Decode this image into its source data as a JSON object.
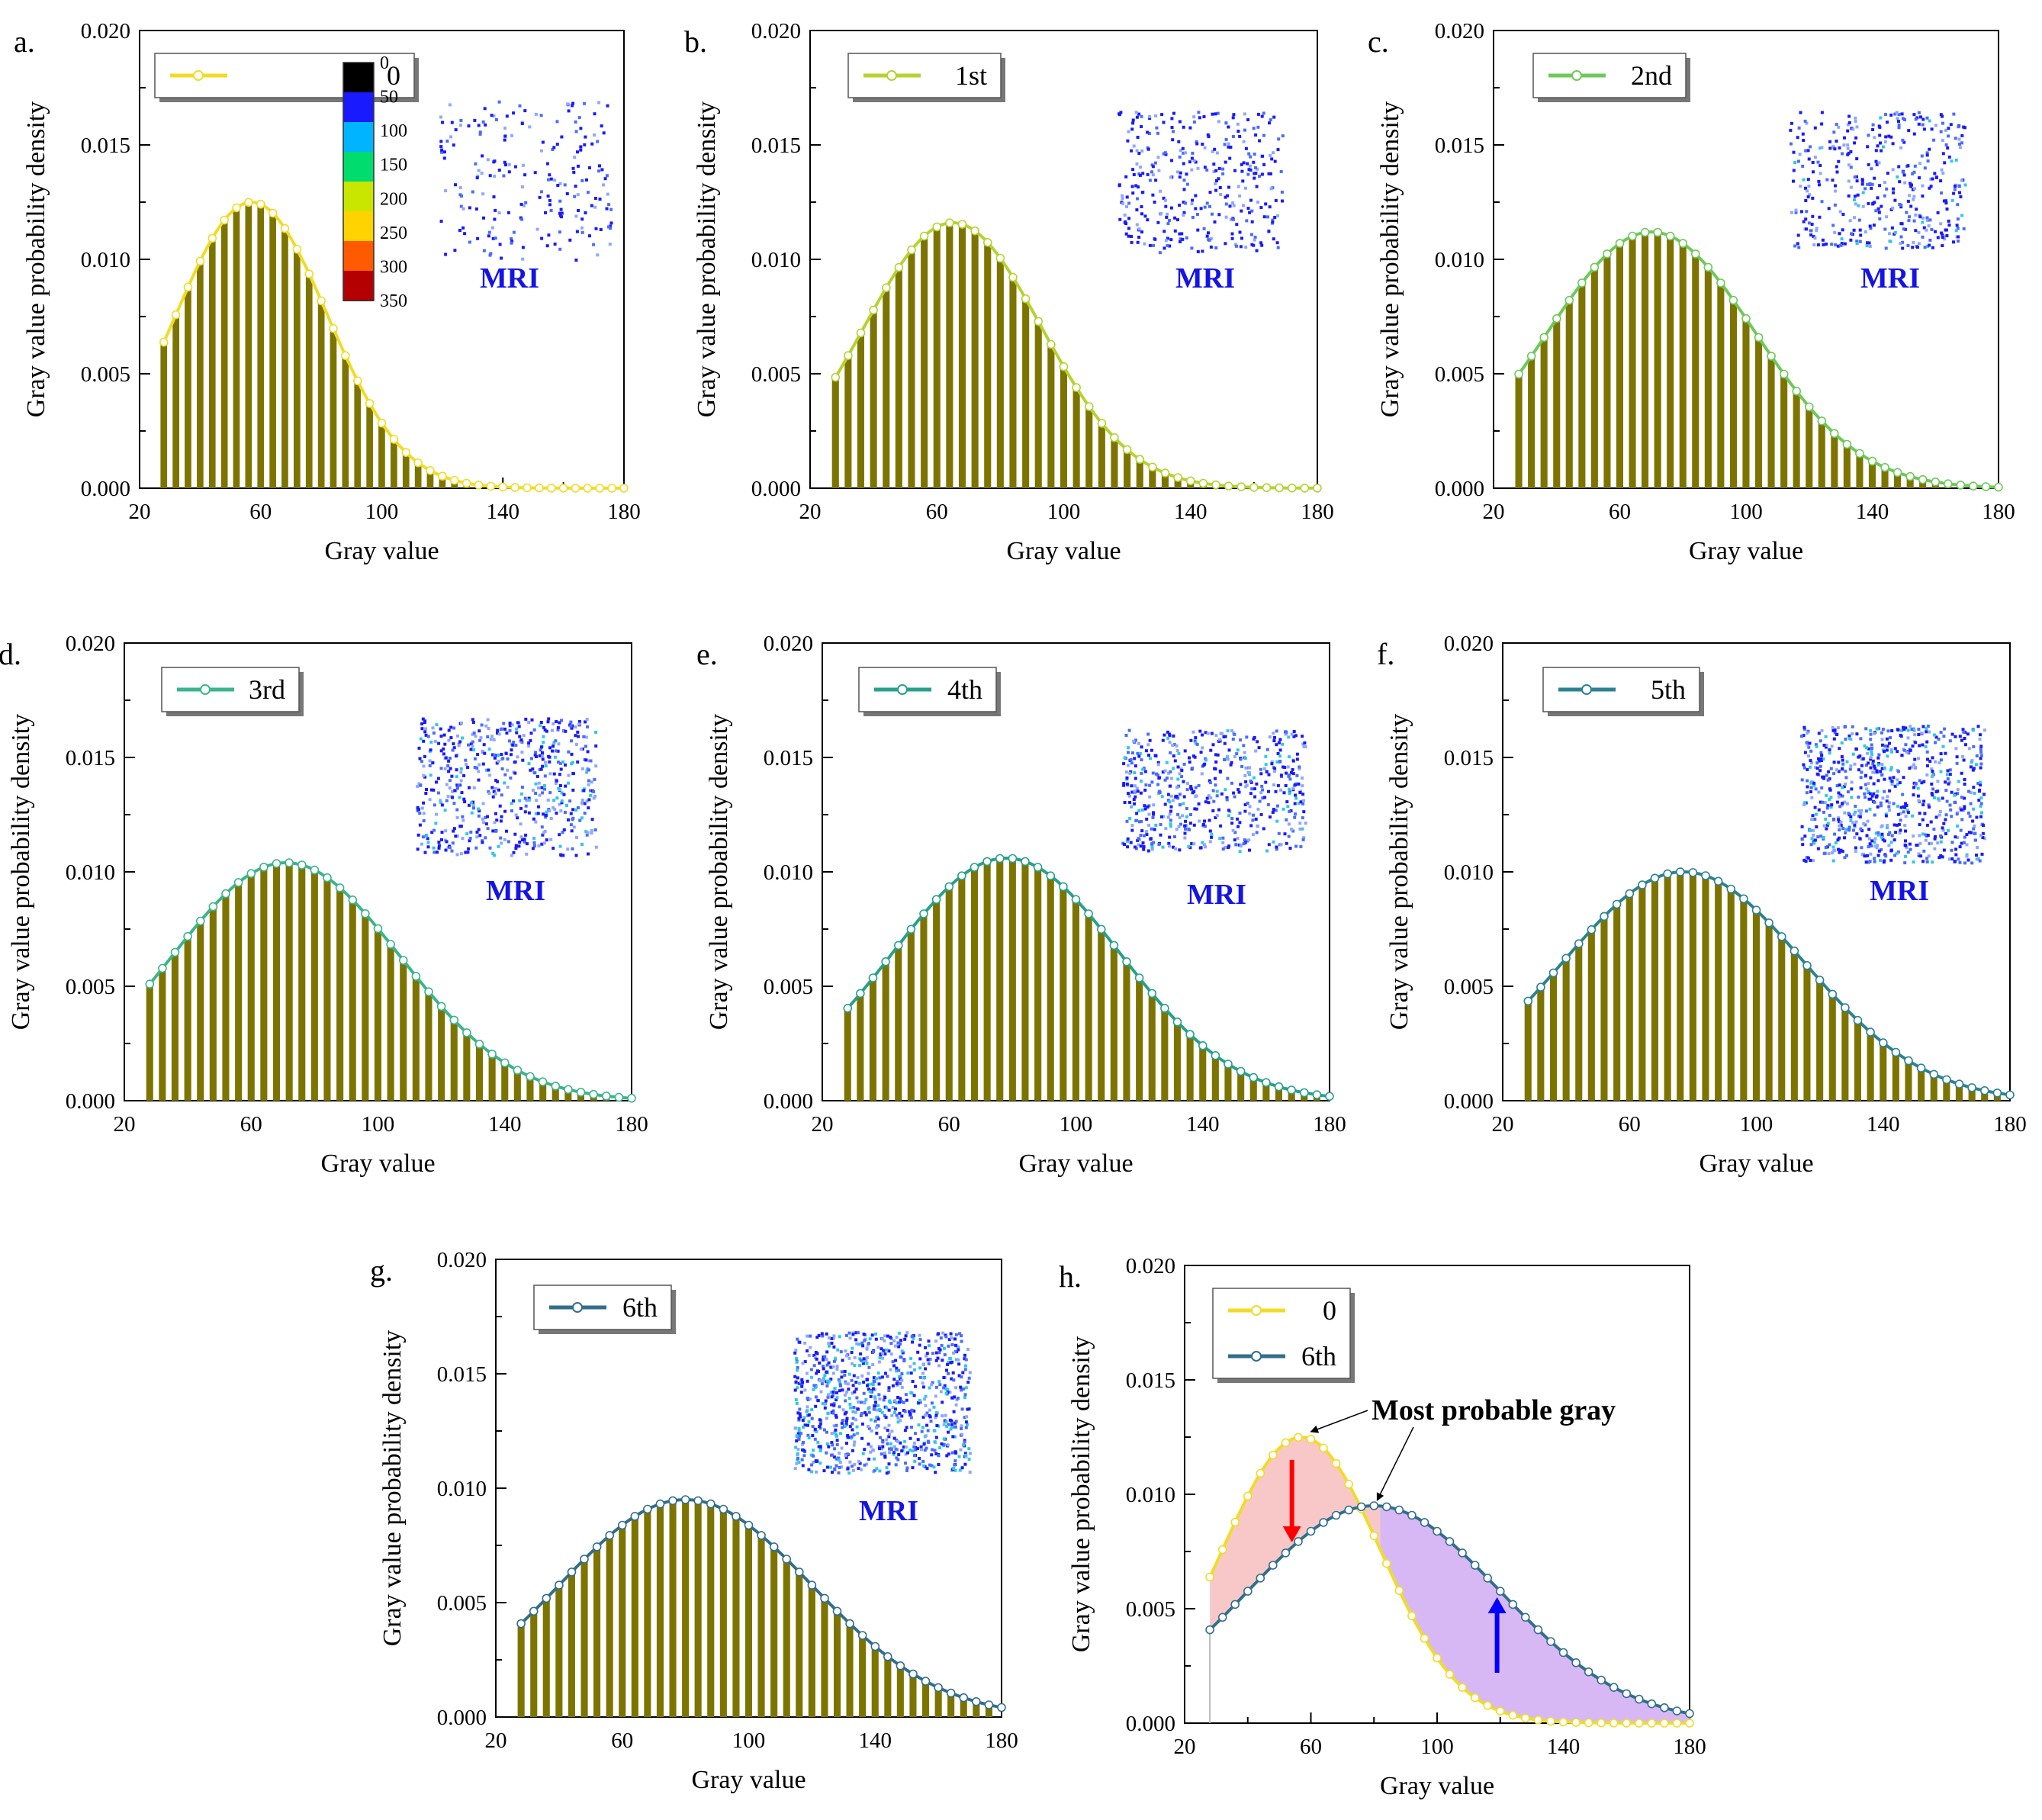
{
  "figure": {
    "colorbar": {
      "ticks": [
        "0",
        "50",
        "100",
        "150",
        "200",
        "250",
        "300",
        "350"
      ],
      "colors": [
        "#000000",
        "#1a1aff",
        "#00b4ff",
        "#00dc6e",
        "#c8e600",
        "#ffd200",
        "#ff5a00",
        "#b40000"
      ]
    },
    "bar_color": "#7d7400",
    "fill_colors": {
      "decrease_region": "#f8c8c8",
      "increase_region": "#d8b8f4"
    },
    "arrow_colors": {
      "down": "#ff0000",
      "up": "#0000ff"
    }
  },
  "chart_data": [
    {
      "type": "bar",
      "panel": "a.",
      "legend": "0",
      "series_color": "#f0dc28",
      "xlabel": "Gray value",
      "ylabel": "Gray value probability density",
      "xlim": [
        20,
        180
      ],
      "ylim": [
        0,
        0.02
      ],
      "xticks": [
        "20",
        "60",
        "100",
        "140",
        "180"
      ],
      "yticks": [
        "0.000",
        "0.005",
        "0.010",
        "0.015",
        "0.020"
      ],
      "inset_label": "MRI",
      "distribution": {
        "mean": 57,
        "sd": 25,
        "peak": 0.0125
      }
    },
    {
      "type": "bar",
      "panel": "b.",
      "legend": "1st",
      "series_color": "#b4d232",
      "xlabel": "Gray value",
      "ylabel": "Gray value probability density",
      "xlim": [
        20,
        180
      ],
      "ylim": [
        0,
        0.02
      ],
      "xticks": [
        "20",
        "60",
        "100",
        "140",
        "180"
      ],
      "yticks": [
        "0.000",
        "0.005",
        "0.010",
        "0.015",
        "0.020"
      ],
      "inset_label": "MRI",
      "distribution": {
        "mean": 65,
        "sd": 28,
        "peak": 0.0116
      }
    },
    {
      "type": "bar",
      "panel": "c.",
      "legend": "2nd",
      "series_color": "#6ec85a",
      "xlabel": "Gray value",
      "ylabel": "Gray value probability density",
      "xlim": [
        20,
        180
      ],
      "ylim": [
        0,
        0.02
      ],
      "xticks": [
        "20",
        "60",
        "100",
        "140",
        "180"
      ],
      "yticks": [
        "0.000",
        "0.005",
        "0.010",
        "0.015",
        "0.020"
      ],
      "inset_label": "MRI",
      "distribution": {
        "mean": 70,
        "sd": 33,
        "peak": 0.0112
      }
    },
    {
      "type": "bar",
      "panel": "d.",
      "legend": "3rd",
      "series_color": "#3cb48c",
      "xlabel": "Gray value",
      "ylabel": "Gray value probability density",
      "xlim": [
        20,
        180
      ],
      "ylim": [
        0,
        0.02
      ],
      "xticks": [
        "20",
        "60",
        "100",
        "140",
        "180"
      ],
      "yticks": [
        "0.000",
        "0.005",
        "0.010",
        "0.015",
        "0.020"
      ],
      "inset_label": "MRI",
      "distribution": {
        "mean": 71,
        "sd": 36,
        "peak": 0.0104
      }
    },
    {
      "type": "bar",
      "panel": "e.",
      "legend": "4th",
      "series_color": "#28a08c",
      "xlabel": "Gray value",
      "ylabel": "Gray value probability density",
      "xlim": [
        20,
        180
      ],
      "ylim": [
        0,
        0.02
      ],
      "xticks": [
        "20",
        "60",
        "100",
        "140",
        "180"
      ],
      "yticks": [
        "0.000",
        "0.005",
        "0.010",
        "0.015",
        "0.020"
      ],
      "inset_label": "MRI",
      "distribution": {
        "mean": 78,
        "sd": 36,
        "peak": 0.0106
      }
    },
    {
      "type": "bar",
      "panel": "f.",
      "legend": "5th",
      "series_color": "#2d8291",
      "xlabel": "Gray value",
      "ylabel": "Gray value probability density",
      "xlim": [
        20,
        180
      ],
      "ylim": [
        0,
        0.02
      ],
      "xticks": [
        "20",
        "60",
        "100",
        "140",
        "180"
      ],
      "yticks": [
        "0.000",
        "0.005",
        "0.010",
        "0.015",
        "0.020"
      ],
      "inset_label": "MRI",
      "distribution": {
        "mean": 77,
        "sd": 38,
        "peak": 0.01
      }
    },
    {
      "type": "bar",
      "panel": "g.",
      "legend": "6th",
      "series_color": "#326e8c",
      "xlabel": "Gray value",
      "ylabel": "Gray value probability density",
      "xlim": [
        20,
        180
      ],
      "ylim": [
        0,
        0.02
      ],
      "xticks": [
        "20",
        "60",
        "100",
        "140",
        "180"
      ],
      "yticks": [
        "0.000",
        "0.005",
        "0.010",
        "0.015",
        "0.020"
      ],
      "inset_label": "MRI",
      "distribution": {
        "mean": 80,
        "sd": 40,
        "peak": 0.0095
      }
    },
    {
      "type": "line",
      "panel": "h.",
      "series": [
        {
          "name": "0",
          "color": "#f0dc28",
          "distribution": {
            "mean": 57,
            "sd": 25,
            "peak": 0.0125
          }
        },
        {
          "name": "6th",
          "color": "#326e8c",
          "distribution": {
            "mean": 80,
            "sd": 40,
            "peak": 0.0095
          }
        }
      ],
      "xlabel": "Gray value",
      "ylabel": "Gray value probability density",
      "xlim": [
        20,
        180
      ],
      "ylim": [
        0,
        0.02
      ],
      "xticks": [
        "20",
        "60",
        "100",
        "140",
        "180"
      ],
      "yticks": [
        "0.000",
        "0.005",
        "0.010",
        "0.015",
        "0.020"
      ],
      "annotation": "Most probable gray"
    }
  ]
}
